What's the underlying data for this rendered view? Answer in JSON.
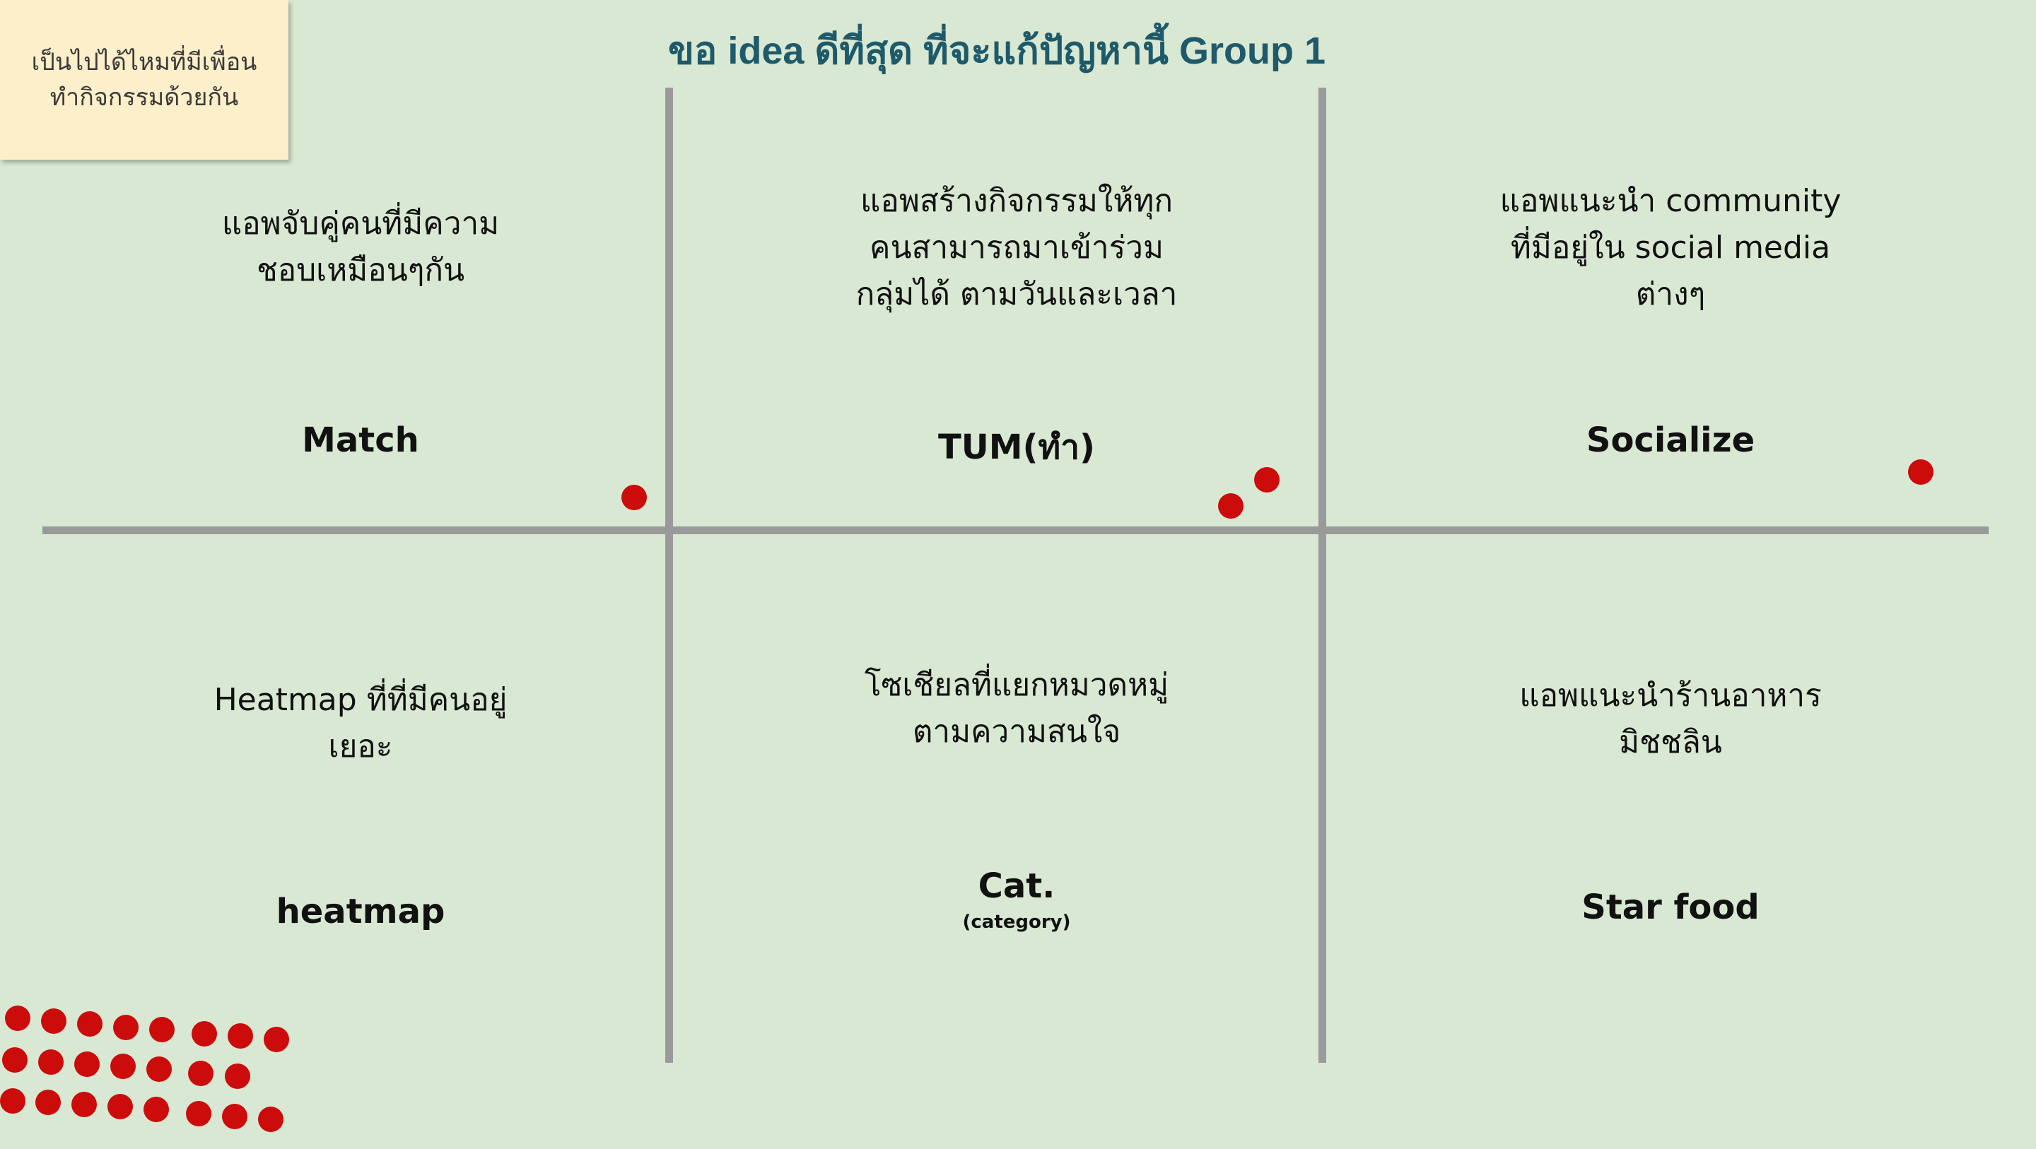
{
  "sticky_note": {
    "text": "เป็นไปได้ไหมที่มีเพื่อน\nทำกิจกรรมด้วยกัน",
    "color": "#fdefc9"
  },
  "title": "ขอ idea ดีที่สุด ที่จะแก้ปัญหานี้ Group 1",
  "accent_color": "#1f5a6a",
  "vote_dot_color": "#cc0b0b",
  "ideas": [
    {
      "description": "แอพจับคู่คนที่มีความ\nชอบเหมือนๆกัน",
      "name": "Match",
      "votes": 1
    },
    {
      "description": "แอพสร้างกิจกรรมให้ทุก\nคนสามารถมาเข้าร่วม\nกลุ่มได้ ตามวันและเวลา",
      "name": "TUM(ทำ)",
      "votes": 2
    },
    {
      "description": "แอพแนะนำ community\nที่มีอยู่ใน social media\nต่างๆ",
      "name": "Socialize",
      "votes": 1
    },
    {
      "description": "Heatmap ที่ที่มีคนอยู่\nเยอะ",
      "name": "heatmap",
      "votes": 0
    },
    {
      "description": "โซเชียลที่แยกหมวดหมู่\nตามความสนใจ",
      "name": "Cat.",
      "subtitle": "(category)",
      "votes": 0
    },
    {
      "description": "แอพแนะนำร้านอาหาร\nมิชชลิน",
      "name": "Star food",
      "votes": 0
    }
  ],
  "unused_vote_dots": 24
}
